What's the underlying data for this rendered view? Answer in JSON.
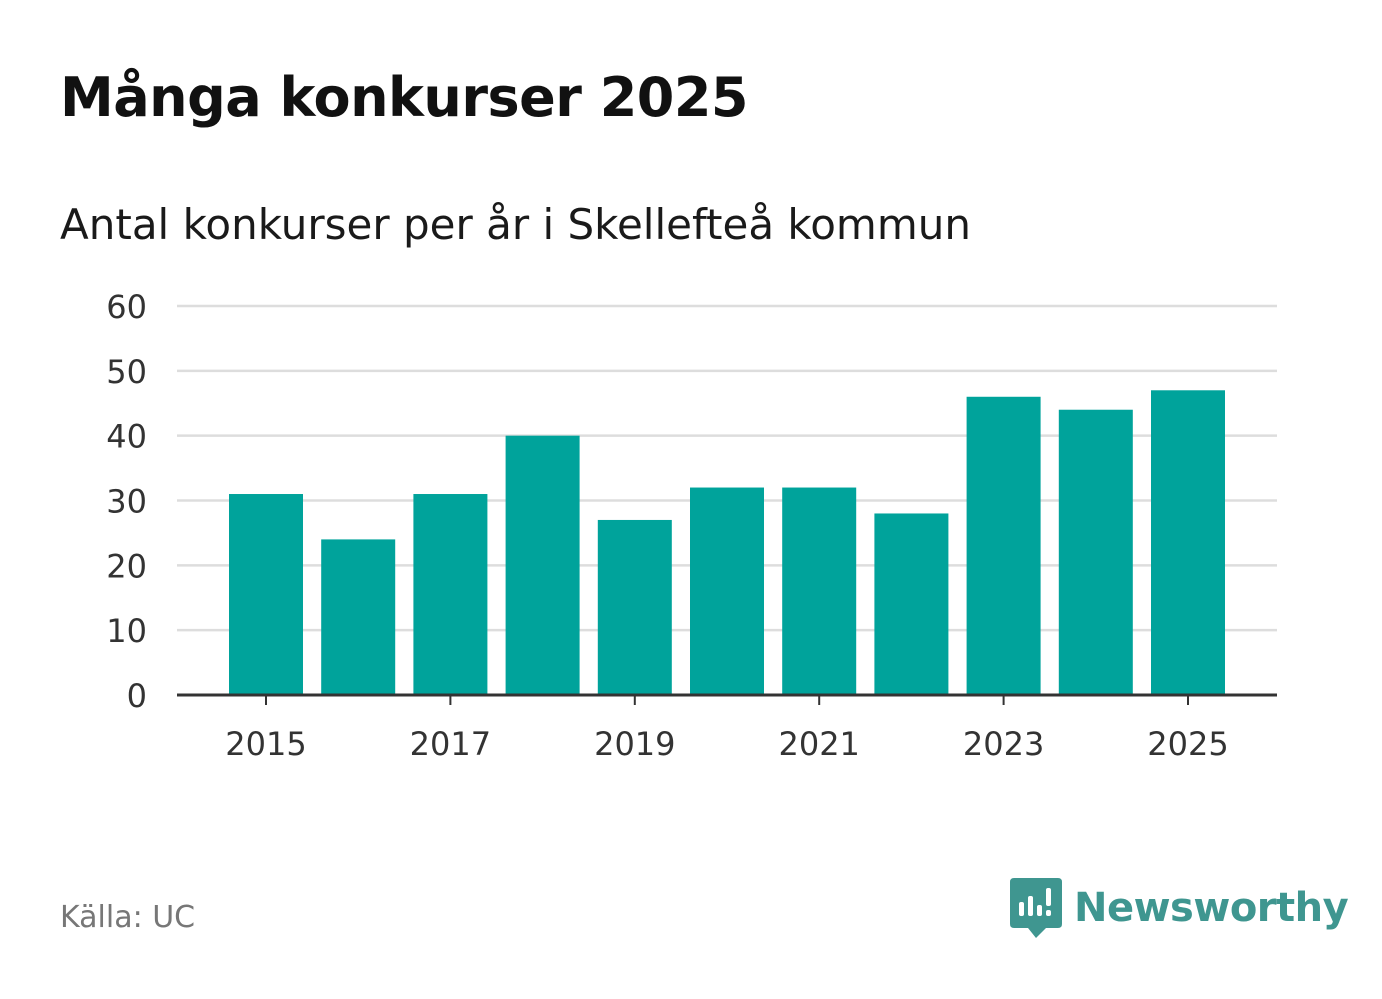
{
  "title": "Många konkurser 2025",
  "subtitle": "Antal konkurser per år i Skellefteå kommun",
  "source": "Källa: UC",
  "brand": {
    "name": "Newsworthy",
    "logo_icon": "newsworthy-logo-icon",
    "color": "#3f9690"
  },
  "colors": {
    "bar": "#00a39b",
    "grid": "#dddddd",
    "axis": "#333333",
    "tick_text": "#333333"
  },
  "chart_data": {
    "type": "bar",
    "title": "Många konkurser 2025",
    "subtitle": "Antal konkurser per år i Skellefteå kommun",
    "xlabel": "",
    "ylabel": "",
    "categories": [
      "2015",
      "2016",
      "2017",
      "2018",
      "2019",
      "2020",
      "2021",
      "2022",
      "2023",
      "2024",
      "2025"
    ],
    "values": [
      31,
      24,
      31,
      40,
      27,
      32,
      32,
      28,
      46,
      44,
      47
    ],
    "x_tick_labels": [
      "2015",
      "2017",
      "2019",
      "2021",
      "2023",
      "2025"
    ],
    "ylim": [
      0,
      60
    ],
    "y_ticks": [
      0,
      10,
      20,
      30,
      40,
      50,
      60
    ],
    "grid": true,
    "legend": "none"
  }
}
